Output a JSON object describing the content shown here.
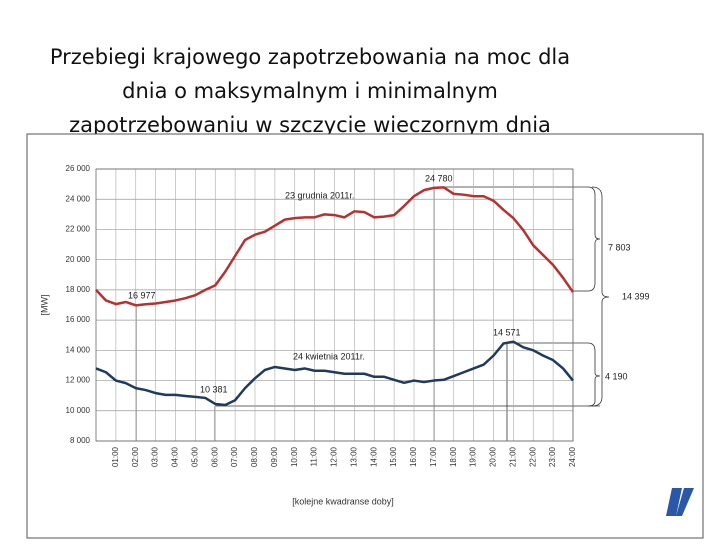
{
  "chart_data": {
    "type": "line",
    "title_lines": [
      "Przebiegi krajowego zapotrzebowania na moc dla",
      "dnia o maksymalnym i minimalnym",
      "zapotrzebowaniu w szczycie wieczornym dnia"
    ],
    "ylabel": "[MW]",
    "xlabel": "[kolejne kwadranse doby]",
    "x": [
      0,
      0.5,
      1,
      1.5,
      2,
      2.5,
      3,
      3.5,
      4,
      4.5,
      5,
      5.5,
      6,
      6.5,
      7,
      7.5,
      8,
      8.5,
      9,
      9.5,
      10,
      10.5,
      11,
      11.5,
      12,
      12.5,
      13,
      13.5,
      14,
      14.5,
      15,
      15.5,
      16,
      16.5,
      17,
      17.5,
      18,
      18.5,
      19,
      19.5,
      20,
      20.5,
      21,
      21.5,
      22,
      22.5,
      23,
      23.5,
      24
    ],
    "series": [
      {
        "name": "23 grudnia 2011r.",
        "color": "#b8312f",
        "values": [
          18000,
          17300,
          17060,
          17200,
          16977,
          17050,
          17100,
          17200,
          17300,
          17450,
          17650,
          18000,
          18300,
          19200,
          20250,
          21300,
          21650,
          21850,
          22250,
          22650,
          22750,
          22800,
          22800,
          23000,
          22950,
          22800,
          23200,
          23150,
          22800,
          22850,
          22950,
          23550,
          24200,
          24600,
          24750,
          24780,
          24350,
          24300,
          24200,
          24200,
          23900,
          23300,
          22750,
          21950,
          20950,
          20300,
          19650,
          18800,
          17850
        ]
      },
      {
        "name": "24 kwietnia 2011r.",
        "color": "#1f3a5f",
        "values": [
          12800,
          12550,
          12000,
          11830,
          11500,
          11370,
          11170,
          11050,
          11050,
          10980,
          10920,
          10850,
          10450,
          10381,
          10700,
          11500,
          12150,
          12700,
          12900,
          12800,
          12700,
          12800,
          12650,
          12650,
          12550,
          12450,
          12450,
          12450,
          12250,
          12250,
          12050,
          11850,
          12000,
          11900,
          12000,
          12050,
          12300,
          12550,
          12800,
          13050,
          13650,
          14450,
          14571,
          14200,
          14000,
          13650,
          13350,
          12800,
          12000
        ]
      }
    ],
    "annotations": [
      "16 977",
      "24 780",
      "10 381",
      "14 571",
      "7 803",
      "14 399",
      "4 190"
    ],
    "xlim": [
      0,
      24
    ],
    "ylim": [
      8000,
      26000
    ],
    "yticks": [
      {
        "value": 8000,
        "label": "8 000"
      },
      {
        "value": 10000,
        "label": "10 000"
      },
      {
        "value": 12000,
        "label": "12 000"
      },
      {
        "value": 14000,
        "label": "14 000"
      },
      {
        "value": 16000,
        "label": "16 000"
      },
      {
        "value": 18000,
        "label": "18 000"
      },
      {
        "value": 20000,
        "label": "20 000"
      },
      {
        "value": 22000,
        "label": "22 000"
      },
      {
        "value": 24000,
        "label": "24 000"
      },
      {
        "value": 26000,
        "label": "26 000"
      }
    ],
    "xticks": [
      {
        "value": 1,
        "label": "01:00"
      },
      {
        "value": 2,
        "label": "02:00"
      },
      {
        "value": 3,
        "label": "03:00"
      },
      {
        "value": 4,
        "label": "04:00"
      },
      {
        "value": 5,
        "label": "05:00"
      },
      {
        "value": 6,
        "label": "06:00"
      },
      {
        "value": 7,
        "label": "07:00"
      },
      {
        "value": 8,
        "label": "08:00"
      },
      {
        "value": 9,
        "label": "09:00"
      },
      {
        "value": 10,
        "label": "10:00"
      },
      {
        "value": 11,
        "label": "11:00"
      },
      {
        "value": 12,
        "label": "12:00"
      },
      {
        "value": 13,
        "label": "13:00"
      },
      {
        "value": 14,
        "label": "14:00"
      },
      {
        "value": 15,
        "label": "15:00"
      },
      {
        "value": 16,
        "label": "16:00"
      },
      {
        "value": 17,
        "label": "17:00"
      },
      {
        "value": 18,
        "label": "18:00"
      },
      {
        "value": 19,
        "label": "19:00"
      },
      {
        "value": 20,
        "label": "20:00"
      },
      {
        "value": 21,
        "label": "21:00"
      },
      {
        "value": 22,
        "label": "22:00"
      },
      {
        "value": 23,
        "label": "23:00"
      },
      {
        "value": 24,
        "label": "24:00"
      }
    ],
    "grid": true
  }
}
